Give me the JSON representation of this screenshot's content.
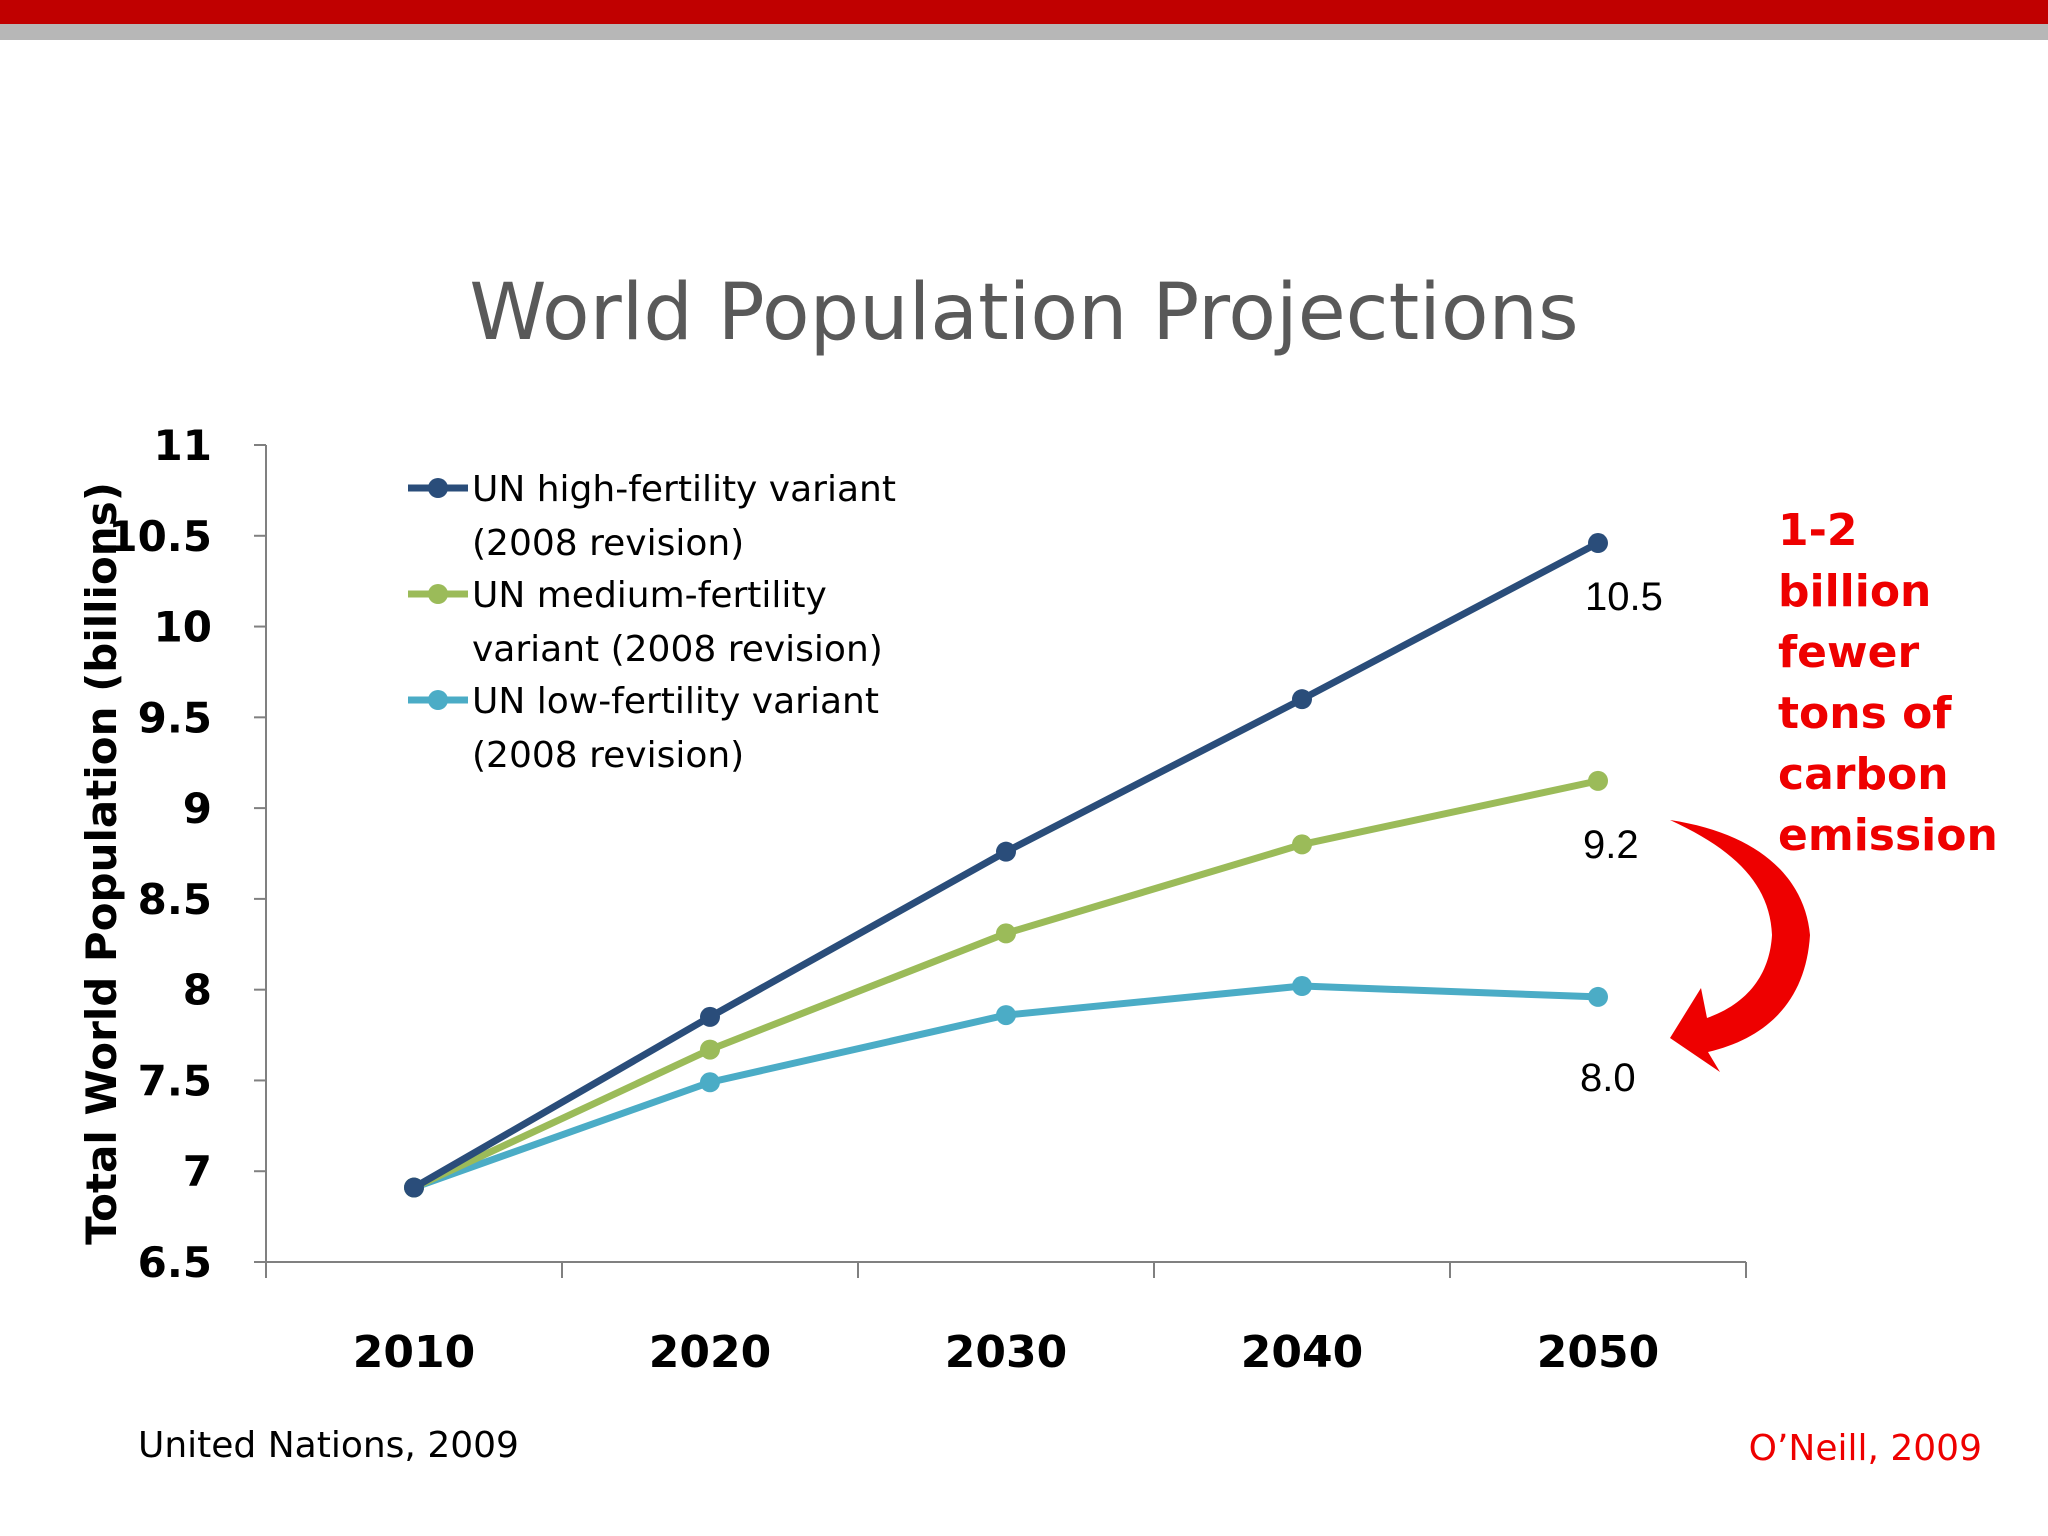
{
  "title": "World Population Projections",
  "annotation": {
    "lines": [
      "1-2",
      "billion",
      "fewer",
      "tons of",
      "carbon",
      "emission"
    ]
  },
  "sources": {
    "left": "United Nations, 2009",
    "right": "O’Neill, 2009"
  },
  "chart_data": {
    "type": "line",
    "ylabel": "Total World Population (billions)",
    "ylim": [
      6.5,
      11
    ],
    "yticks": [
      "6.5",
      "7",
      "7.5",
      "8",
      "8.5",
      "9",
      "9.5",
      "10",
      "10.5",
      "11"
    ],
    "x": [
      "2010",
      "2020",
      "2030",
      "2040",
      "2050"
    ],
    "grid": false,
    "legend_position": "top-left",
    "series": [
      {
        "name": "UN high-fertility variant (2008 revision)",
        "legend_lines": [
          "UN high-fertility variant",
          "(2008 revision)"
        ],
        "color": "#2a4d7a",
        "values": [
          6.91,
          7.85,
          8.76,
          9.6,
          10.46
        ],
        "end_label": "10.5"
      },
      {
        "name": "UN medium-fertility variant (2008 revision)",
        "legend_lines": [
          "UN medium-fertility",
          "variant (2008 revision)"
        ],
        "color": "#9bbb59",
        "values": [
          6.91,
          7.67,
          8.31,
          8.8,
          9.15
        ],
        "end_label": "9.2"
      },
      {
        "name": "UN low-fertility variant (2008 revision)",
        "legend_lines": [
          "UN low-fertility variant",
          "(2008 revision)"
        ],
        "color": "#4bacc6",
        "values": [
          6.91,
          7.49,
          7.86,
          8.02,
          7.96
        ],
        "end_label": "8.0"
      }
    ]
  }
}
